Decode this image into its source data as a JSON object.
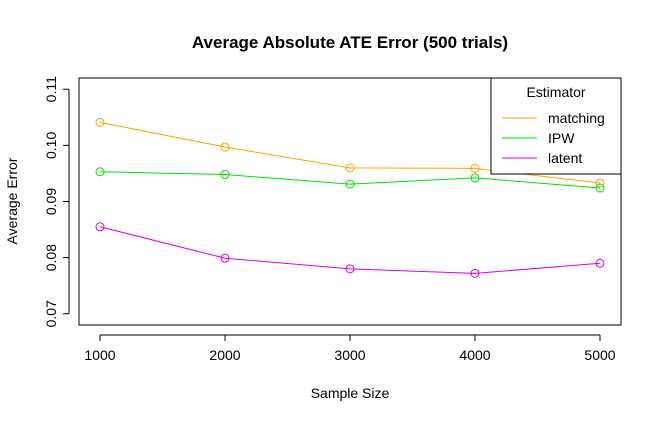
{
  "chart_data": {
    "type": "line",
    "title": "Average Absolute ATE Error (500 trials)",
    "xlabel": "Sample Size",
    "ylabel": "Average Error",
    "x": [
      1000,
      2000,
      3000,
      4000,
      5000
    ],
    "x_ticks": [
      "1000",
      "2000",
      "3000",
      "4000",
      "5000"
    ],
    "ylim": [
      0.068,
      0.112
    ],
    "y_ticks": [
      "0.07",
      "0.08",
      "0.09",
      "0.10",
      "0.11"
    ],
    "y_tick_values": [
      0.07,
      0.08,
      0.09,
      0.1,
      0.11
    ],
    "grid": false,
    "legend": {
      "title": "Estimator",
      "position": "top-right"
    },
    "series": [
      {
        "name": "matching",
        "color": "#ffa500",
        "values": [
          0.1041,
          0.0997,
          0.096,
          0.0959,
          0.0933
        ]
      },
      {
        "name": "IPW",
        "color": "#00e000",
        "values": [
          0.0953,
          0.0948,
          0.0931,
          0.0942,
          0.0924
        ]
      },
      {
        "name": "latent",
        "color": "#e000e0",
        "values": [
          0.0855,
          0.0799,
          0.078,
          0.0772,
          0.079
        ]
      }
    ]
  }
}
